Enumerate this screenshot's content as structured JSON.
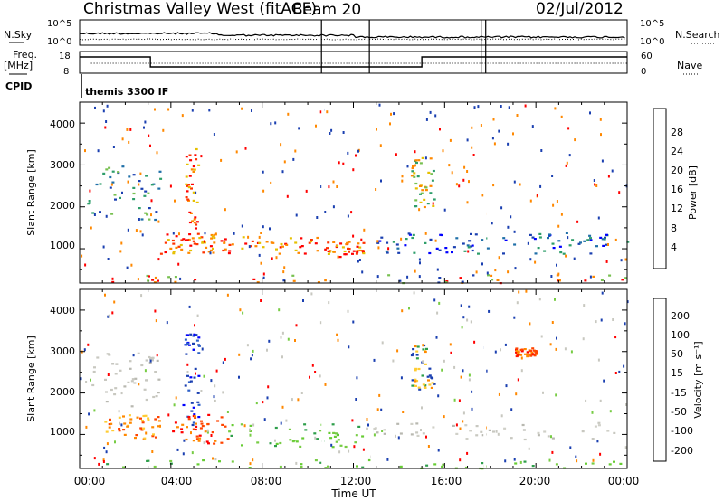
{
  "header": {
    "title": "Christmas Valley West (fitACF)",
    "beam": "Beam 20",
    "date": "02/Jul/2012"
  },
  "noise_panel": {
    "left_label": "N.Sky",
    "right_label": "N.Search",
    "left_ticks": [
      "10^5",
      "10^0"
    ],
    "right_ticks": [
      "10^5",
      "10^0"
    ]
  },
  "freq_panel": {
    "left_label_1": "Freq.",
    "left_label_2": "[MHz]",
    "right_label": "Nave",
    "left_ticks": [
      "18",
      "8"
    ],
    "right_ticks": [
      "60",
      "0"
    ]
  },
  "cpid_panel": {
    "label": "CPID",
    "mode": "themis 3300 IF"
  },
  "colors": {
    "red": "#ff0000",
    "orange": "#ff8c00",
    "yellow": "#e6b800",
    "lightgreen": "#66cc33",
    "green": "#2e9e4a",
    "teal": "#1f8a80",
    "blue": "#1a3fb0",
    "darkblue": "#0000ff",
    "gray": "#c8c8c0"
  },
  "chart_data": [
    {
      "type": "heatmap",
      "name": "power",
      "xlabel": "",
      "ylabel": "Slant Range [km]",
      "xlim": [
        0,
        24
      ],
      "ylim": [
        180,
        4500
      ],
      "yticks": [
        "1000",
        "2000",
        "3000",
        "4000"
      ],
      "colorbar": {
        "label": "Power [dB]",
        "ticks": [
          "28",
          "24",
          "20",
          "16",
          "12",
          "8",
          "4"
        ],
        "colors": [
          "#ff0000",
          "#ff3300",
          "#ff8800",
          "#e6c000",
          "#77c050",
          "#2e9e6a",
          "#1f6fa8",
          "#0000ff"
        ]
      },
      "features": [
        {
          "t0": 0.3,
          "t1": 3.5,
          "r0": 1700,
          "r1": 3000,
          "value": "low-mid"
        },
        {
          "t0": 3.5,
          "t1": 6.0,
          "r0": 900,
          "r1": 1400,
          "value": "high"
        },
        {
          "t0": 4.6,
          "t1": 5.2,
          "r0": 1200,
          "r1": 3500,
          "value": "high"
        },
        {
          "t0": 6.0,
          "t1": 10.5,
          "r0": 900,
          "r1": 1300,
          "value": "high"
        },
        {
          "t0": 10.7,
          "t1": 12.5,
          "r0": 800,
          "r1": 1200,
          "value": "high"
        },
        {
          "t0": 13.0,
          "t1": 18.0,
          "r0": 900,
          "r1": 1400,
          "value": "low"
        },
        {
          "t0": 14.5,
          "t1": 15.5,
          "r0": 2000,
          "r1": 3200,
          "value": "mid"
        },
        {
          "t0": 18.5,
          "t1": 24.0,
          "r0": 900,
          "r1": 1400,
          "value": "low"
        },
        {
          "t0": 0.0,
          "t1": 24.0,
          "r0": 200,
          "r1": 400,
          "value": "ground-scatter"
        }
      ]
    },
    {
      "type": "heatmap",
      "name": "velocity",
      "xlabel": "Time UT",
      "ylabel": "Slant Range [km]",
      "xlim": [
        0,
        24
      ],
      "ylim": [
        180,
        4500
      ],
      "xticks": [
        "00:00",
        "04:00",
        "08:00",
        "12:00",
        "16:00",
        "20:00",
        "00:00"
      ],
      "yticks": [
        "1000",
        "2000",
        "3000",
        "4000"
      ],
      "colorbar": {
        "label": "Velocity [m s⁻¹]",
        "ticks": [
          "200",
          "100",
          "50",
          "15",
          "-15",
          "-50",
          "-100",
          "-200"
        ],
        "colors": [
          "#1a3fb0",
          "#2e60c8",
          "#2e9e4a",
          "#77cc44",
          "#c8c8c0",
          "#ffcc33",
          "#ff8800",
          "#ff4400",
          "#ff0000"
        ]
      },
      "features": [
        {
          "t0": 0.3,
          "t1": 3.5,
          "r0": 1700,
          "r1": 3000,
          "value": "ground-gray"
        },
        {
          "t0": 1.0,
          "t1": 3.5,
          "r0": 900,
          "r1": 1500,
          "value": "orange"
        },
        {
          "t0": 4.5,
          "t1": 5.2,
          "r0": 1200,
          "r1": 3500,
          "value": "blue"
        },
        {
          "t0": 4.0,
          "t1": 6.5,
          "r0": 800,
          "r1": 1500,
          "value": "red"
        },
        {
          "t0": 6.5,
          "t1": 12.5,
          "r0": 700,
          "r1": 1300,
          "value": "green"
        },
        {
          "t0": 14.5,
          "t1": 15.5,
          "r0": 2000,
          "r1": 3200,
          "value": "mixed"
        },
        {
          "t0": 12.5,
          "t1": 24.0,
          "r0": 900,
          "r1": 1300,
          "value": "gray"
        },
        {
          "t0": 19.0,
          "t1": 20.0,
          "r0": 2900,
          "r1": 3100,
          "value": "red"
        },
        {
          "t0": 0.0,
          "t1": 24.0,
          "r0": 200,
          "r1": 400,
          "value": "green"
        }
      ]
    }
  ]
}
